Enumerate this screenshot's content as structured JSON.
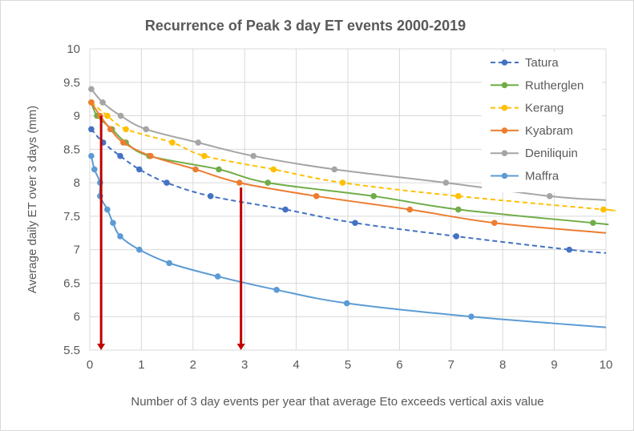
{
  "chart_data": {
    "type": "line",
    "title": "Recurrence of Peak 3 day ET events 2000-2019",
    "xlabel": "Number of 3 day events per year that average Eto exceeds vertical axis value",
    "ylabel": "Average daily ET over 3 days (mm)",
    "xlim": [
      0,
      10
    ],
    "ylim": [
      5.5,
      10
    ],
    "xticks": [
      "0",
      "1",
      "2",
      "3",
      "4",
      "5",
      "6",
      "7",
      "8",
      "9",
      "10"
    ],
    "yticks": [
      "5.5",
      "6",
      "6.5",
      "7",
      "7.5",
      "8",
      "8.5",
      "9",
      "9.5",
      "10"
    ],
    "grid": true,
    "legend": "right",
    "series": [
      {
        "name": "Tatura",
        "color": "#4472C4",
        "dashed": true,
        "x": [
          0.03,
          0.26,
          0.59,
          0.96,
          1.49,
          2.34,
          3.79,
          5.14,
          7.1,
          9.29
        ],
        "y": [
          8.8,
          8.6,
          8.4,
          8.2,
          8.0,
          7.8,
          7.6,
          7.4,
          7.2,
          7.0
        ],
        "end": 6.95
      },
      {
        "name": "Rutherglen",
        "color": "#70AD47",
        "dashed": false,
        "x": [
          0.03,
          0.14,
          0.43,
          0.7,
          1.15,
          2.5,
          3.45,
          5.5,
          7.14,
          9.75
        ],
        "y": [
          9.2,
          9.0,
          8.8,
          8.6,
          8.4,
          8.2,
          8.0,
          7.8,
          7.6,
          7.4
        ],
        "end": 7.38
      },
      {
        "name": "Kerang",
        "color": "#FFC000",
        "dashed": true,
        "x": [
          0.03,
          0.34,
          0.7,
          1.6,
          2.22,
          3.56,
          4.9,
          7.14,
          9.95
        ],
        "y": [
          9.2,
          9.0,
          8.8,
          8.6,
          8.4,
          8.2,
          8.0,
          7.8,
          7.6
        ],
        "end": 7.6
      },
      {
        "name": "Kyabram",
        "color": "#ED7D31",
        "dashed": false,
        "x": [
          0.03,
          0.2,
          0.4,
          0.65,
          1.18,
          2.05,
          2.9,
          4.39,
          6.2,
          7.84
        ],
        "y": [
          9.2,
          9.0,
          8.8,
          8.6,
          8.4,
          8.2,
          8.0,
          7.8,
          7.6,
          7.4
        ],
        "end": 7.25
      },
      {
        "name": "Deniliquin",
        "color": "#A5A5A5",
        "dashed": false,
        "x": [
          0.03,
          0.25,
          0.6,
          1.09,
          2.1,
          3.17,
          4.74,
          6.9,
          8.91
        ],
        "y": [
          9.4,
          9.2,
          9.0,
          8.8,
          8.6,
          8.4,
          8.2,
          8.0,
          7.8
        ],
        "end": 7.74
      },
      {
        "name": "Maffra",
        "color": "#5B9BD5",
        "dashed": false,
        "x": [
          0.03,
          0.09,
          0.2,
          0.2,
          0.34,
          0.45,
          0.59,
          0.96,
          1.54,
          2.48,
          3.62,
          4.98,
          7.39
        ],
        "y": [
          8.4,
          8.2,
          8.0,
          7.8,
          7.6,
          7.4,
          7.2,
          7.0,
          6.8,
          6.6,
          6.4,
          6.2,
          6.0
        ],
        "end": 5.84
      }
    ],
    "annotations": [
      {
        "type": "arrow",
        "color": "#C00000",
        "x": 0.22,
        "from_y": 9.0,
        "to_y": 5.5
      },
      {
        "type": "arrow",
        "color": "#C00000",
        "x": 2.93,
        "from_y": 7.93,
        "to_y": 5.5
      }
    ]
  }
}
